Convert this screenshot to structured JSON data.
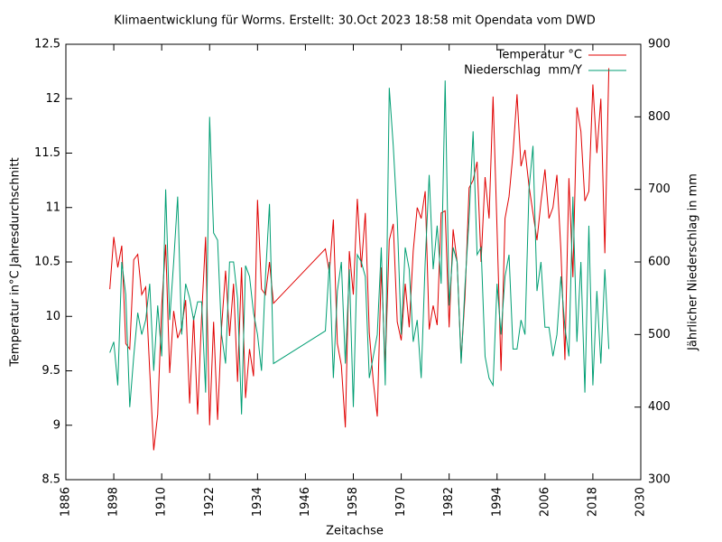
{
  "chart_data": {
    "type": "line",
    "title": "Klimaentwicklung für Worms. Erstellt: 30.Oct 2023 18:58 mit Opendata vom DWD",
    "x_label": "Zeitachse",
    "y_label": "Temperatur in°C Jahresdurchschnitt",
    "y2_label": "Jährlicher Niederschlag in mm",
    "x": [
      1897,
      1898,
      1899,
      1900,
      1901,
      1902,
      1903,
      1904,
      1905,
      1906,
      1907,
      1908,
      1909,
      1910,
      1911,
      1912,
      1913,
      1914,
      1915,
      1916,
      1917,
      1918,
      1919,
      1920,
      1921,
      1922,
      1923,
      1924,
      1925,
      1926,
      1927,
      1928,
      1929,
      1930,
      1931,
      1932,
      1933,
      1934,
      1935,
      1936,
      1937,
      1938,
      1951,
      1952,
      1953,
      1954,
      1955,
      1956,
      1957,
      1958,
      1959,
      1960,
      1961,
      1962,
      1963,
      1964,
      1965,
      1966,
      1967,
      1968,
      1969,
      1970,
      1971,
      1972,
      1973,
      1974,
      1975,
      1976,
      1977,
      1978,
      1979,
      1980,
      1981,
      1982,
      1983,
      1984,
      1985,
      1986,
      1987,
      1988,
      1989,
      1990,
      1991,
      1992,
      1993,
      1994,
      1995,
      1996,
      1997,
      1998,
      1999,
      2000,
      2001,
      2002,
      2003,
      2004,
      2005,
      2006,
      2007,
      2008,
      2009,
      2010,
      2011,
      2012,
      2013,
      2014,
      2015,
      2016,
      2017,
      2018,
      2019,
      2020,
      2021,
      2022
    ],
    "series": [
      {
        "name": "Temperatur °C",
        "color": "#e00000",
        "values": [
          10.25,
          10.73,
          10.45,
          10.65,
          9.75,
          9.7,
          10.52,
          10.57,
          10.2,
          10.27,
          9.5,
          8.77,
          9.1,
          10.1,
          10.66,
          9.48,
          10.05,
          9.8,
          9.9,
          10.15,
          9.2,
          10.0,
          9.1,
          10.0,
          10.73,
          9.0,
          9.95,
          9.05,
          9.9,
          10.42,
          9.82,
          10.3,
          9.4,
          10.45,
          9.25,
          9.7,
          9.45,
          11.07,
          10.25,
          10.2,
          10.5,
          10.12,
          10.62,
          10.4,
          10.89,
          9.75,
          9.55,
          8.98,
          10.6,
          10.2,
          11.08,
          10.45,
          10.95,
          9.85,
          9.4,
          9.08,
          10.45,
          9.55,
          10.7,
          10.85,
          9.95,
          9.78,
          10.3,
          9.9,
          10.6,
          11.0,
          10.9,
          11.15,
          9.88,
          10.1,
          9.92,
          10.95,
          10.97,
          9.9,
          10.8,
          10.5,
          9.6,
          10.2,
          11.18,
          11.25,
          11.42,
          10.5,
          11.28,
          10.9,
          12.02,
          10.8,
          9.5,
          10.9,
          11.1,
          11.5,
          12.04,
          11.38,
          11.53,
          11.2,
          10.95,
          10.7,
          11.05,
          11.35,
          10.9,
          11.0,
          11.3,
          10.6,
          9.6,
          11.27,
          10.36,
          11.92,
          11.7,
          11.06,
          11.15,
          12.13,
          11.5,
          12.0,
          10.58,
          12.28
        ]
      },
      {
        "name": "Niederschlag  mm/Y",
        "color": "#009e73",
        "axis": "y2",
        "values": [
          475,
          490,
          430,
          600,
          555,
          400,
          470,
          530,
          500,
          520,
          570,
          450,
          540,
          470,
          700,
          520,
          600,
          690,
          500,
          570,
          550,
          520,
          545,
          545,
          420,
          800,
          640,
          630,
          500,
          460,
          600,
          600,
          550,
          390,
          595,
          580,
          530,
          500,
          450,
          580,
          680,
          460,
          505,
          600,
          440,
          560,
          600,
          460,
          590,
          400,
          610,
          600,
          580,
          440,
          470,
          500,
          620,
          430,
          840,
          760,
          660,
          500,
          620,
          590,
          490,
          520,
          440,
          600,
          720,
          590,
          650,
          570,
          850,
          540,
          620,
          600,
          460,
          570,
          660,
          780,
          610,
          620,
          470,
          440,
          430,
          570,
          500,
          580,
          610,
          480,
          480,
          520,
          500,
          700,
          760,
          560,
          600,
          510,
          510,
          470,
          500,
          580,
          510,
          470,
          690,
          490,
          600,
          420,
          650,
          430,
          560,
          460,
          590,
          480
        ]
      }
    ],
    "xlim": [
      1886,
      2030
    ],
    "xticks": [
      1886,
      1898,
      1910,
      1922,
      1934,
      1946,
      1958,
      1970,
      1982,
      1994,
      2006,
      2018,
      2030
    ],
    "ylim": [
      8.5,
      12.5
    ],
    "yticks": [
      8.5,
      9,
      9.5,
      10,
      10.5,
      11,
      11.5,
      12,
      12.5
    ],
    "y2lim": [
      300,
      900
    ],
    "y2ticks": [
      300,
      400,
      500,
      600,
      700,
      800,
      900
    ],
    "legend": "top-right",
    "grid": false
  }
}
